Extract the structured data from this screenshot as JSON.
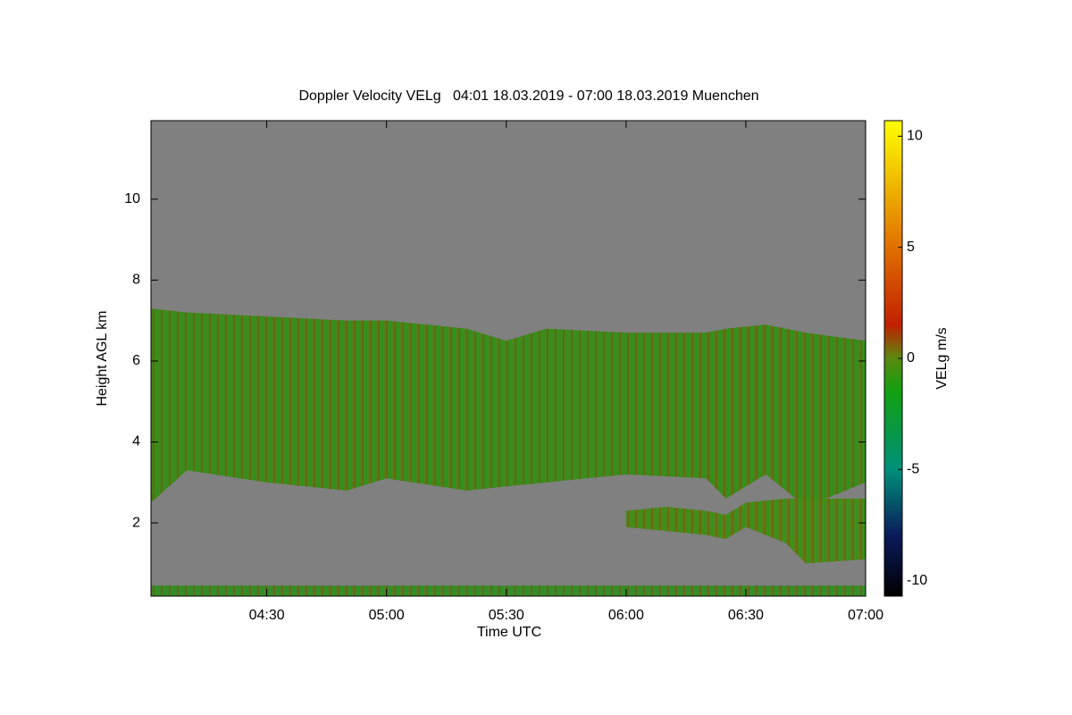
{
  "chart_data": {
    "type": "heatmap",
    "title": "Doppler Velocity VELg   04:01 18.03.2019 - 07:00 18.03.2019 Muenchen",
    "xlabel": "Time UTC",
    "ylabel": "Height AGL km",
    "background": "#808080",
    "xlim": [
      241,
      420
    ],
    "xticks": [
      {
        "value": 270,
        "label": "04:30"
      },
      {
        "value": 300,
        "label": "05:00"
      },
      {
        "value": 330,
        "label": "05:30"
      },
      {
        "value": 360,
        "label": "06:00"
      },
      {
        "value": 390,
        "label": "06:30"
      },
      {
        "value": 420,
        "label": "07:00"
      }
    ],
    "ylim": [
      0.19,
      11.94
    ],
    "yticks": [
      2,
      4,
      6,
      8,
      10
    ],
    "layers": [
      {
        "color": "#3f8a1c",
        "x": [
          241,
          250,
          270,
          290,
          300,
          320,
          330,
          340,
          360,
          380,
          385,
          395,
          400,
          405,
          420
        ],
        "top": [
          7.3,
          7.2,
          7.1,
          7.0,
          7.0,
          6.8,
          6.5,
          6.8,
          6.7,
          6.7,
          6.8,
          6.9,
          6.8,
          6.7,
          6.5
        ],
        "base": [
          2.5,
          3.3,
          3.0,
          2.8,
          3.1,
          2.8,
          2.9,
          3.0,
          3.2,
          3.1,
          2.6,
          3.2,
          2.8,
          2.4,
          3.0
        ]
      },
      {
        "color": "#4a8a1a",
        "x": [
          360,
          370,
          380,
          385,
          390,
          400,
          405,
          420
        ],
        "top": [
          2.3,
          2.4,
          2.3,
          2.2,
          2.5,
          2.6,
          2.6,
          2.6
        ],
        "base": [
          1.9,
          1.8,
          1.7,
          1.6,
          1.9,
          1.5,
          1.0,
          1.1
        ]
      },
      {
        "color": "#3a8a2a",
        "x": [
          241,
          420
        ],
        "top": [
          0.45,
          0.45
        ],
        "base": [
          0.19,
          0.19
        ]
      }
    ],
    "colorbar": {
      "label": "VELg m/s",
      "clim": [
        -10.7,
        10.7
      ],
      "ticks": [
        -10,
        -5,
        0,
        5,
        10
      ],
      "colormap": [
        {
          "value": -10.7,
          "color": "#000000"
        },
        {
          "value": -8,
          "color": "#0a1a5a"
        },
        {
          "value": -5,
          "color": "#00907a"
        },
        {
          "value": -1.5,
          "color": "#10a010"
        },
        {
          "value": 0,
          "color": "#5a8a10"
        },
        {
          "value": 1.5,
          "color": "#c02000"
        },
        {
          "value": 5,
          "color": "#e07000"
        },
        {
          "value": 10.7,
          "color": "#ffff00"
        }
      ]
    }
  }
}
